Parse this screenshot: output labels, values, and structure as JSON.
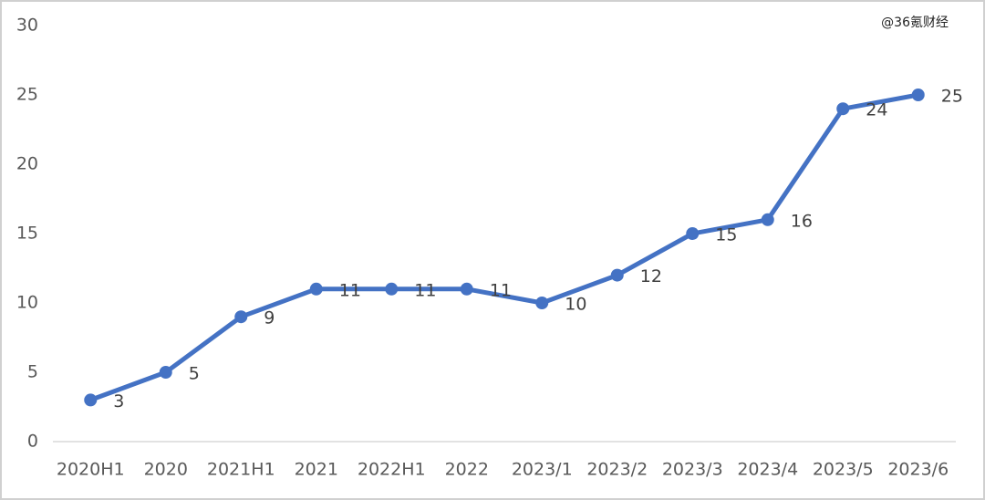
{
  "chart_data": {
    "type": "line",
    "watermark": "@36氪财经",
    "categories": [
      "2020H1",
      "2020",
      "2021H1",
      "2021",
      "2022H1",
      "2022",
      "2023/1",
      "2023/2",
      "2023/3",
      "2023/4",
      "2023/5",
      "2023/6"
    ],
    "values": [
      3,
      5,
      9,
      11,
      11,
      11,
      10,
      12,
      15,
      16,
      24,
      25
    ],
    "color": "#4472c4",
    "ylim": [
      0,
      30
    ],
    "yticks": [
      0,
      5,
      10,
      15,
      20,
      25,
      30
    ],
    "grid": false
  }
}
